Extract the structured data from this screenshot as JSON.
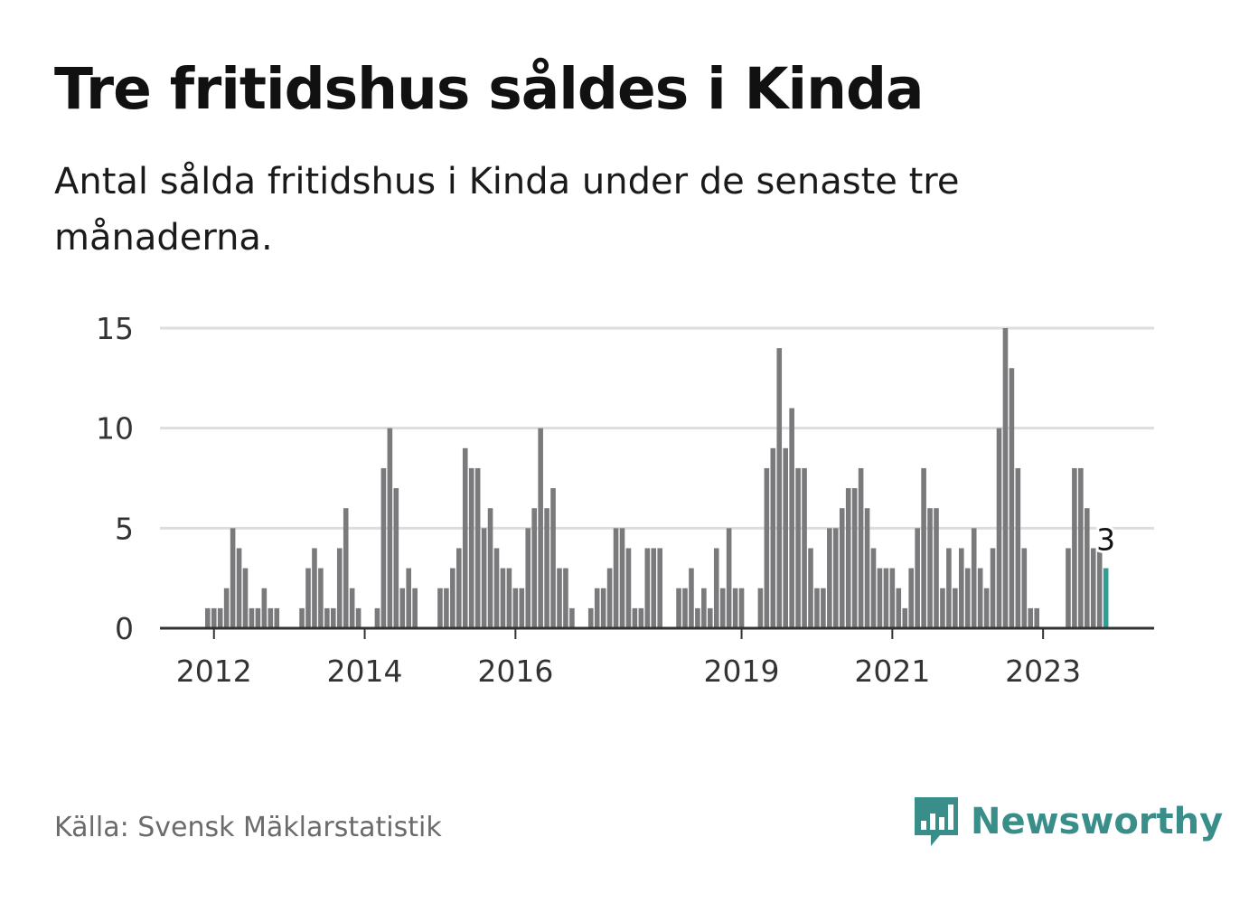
{
  "title": "Tre fritidshus såldes i Kinda",
  "subtitle": "Antal sålda fritidshus i Kinda under de senaste tre månaderna.",
  "source": "Källa: Svensk Mäklarstatistik",
  "logo_text": "Newsworthy",
  "colors": {
    "bar": "#7a797c",
    "highlight": "#2f9e95",
    "grid": "#dddddd",
    "axis": "#333333",
    "brand": "#3a8e8a"
  },
  "chart_data": {
    "type": "bar",
    "ylim": [
      0,
      15
    ],
    "yticks": [
      0,
      5,
      10,
      15
    ],
    "xticks": [
      "2012",
      "2014",
      "2016",
      "2019",
      "2021",
      "2023"
    ],
    "grid": true,
    "legend": "none",
    "highlight_label": "3",
    "series": [
      {
        "values": [
          1,
          1,
          1,
          2,
          5,
          4,
          3,
          1,
          1,
          2,
          1,
          1,
          0,
          0,
          0,
          1,
          3,
          4,
          3,
          1,
          1,
          4,
          6,
          2,
          1,
          0,
          0,
          1,
          8,
          10,
          7,
          2,
          3,
          2,
          0,
          0,
          0,
          2,
          2,
          3,
          4,
          9,
          8,
          8,
          5,
          6,
          4,
          3,
          3,
          2,
          2,
          5,
          6,
          10,
          6,
          7,
          3,
          3,
          1,
          0,
          0,
          1,
          2,
          2,
          3,
          5,
          5,
          4,
          1,
          1,
          4,
          4,
          4,
          0,
          0,
          2,
          2,
          3,
          1,
          2,
          1,
          4,
          2,
          5,
          2,
          2,
          0,
          0,
          2,
          8,
          9,
          14,
          9,
          11,
          8,
          8,
          4,
          2,
          2,
          5,
          5,
          6,
          7,
          7,
          8,
          6,
          4,
          3,
          3,
          3,
          2,
          1,
          3,
          5,
          8,
          6,
          6,
          2,
          4,
          2,
          4,
          3,
          5,
          3,
          2,
          4,
          10,
          15,
          13,
          8,
          4,
          1,
          1,
          0,
          0,
          0,
          0,
          4,
          8,
          8,
          6,
          4,
          4,
          3
        ]
      }
    ]
  }
}
